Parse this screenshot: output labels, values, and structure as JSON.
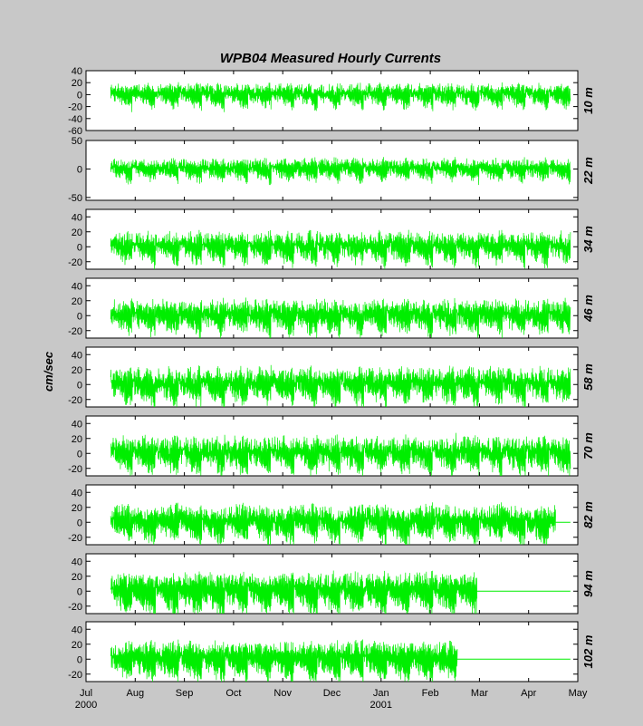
{
  "chart_data": {
    "type": "line",
    "title": "WPB04  Measured Hourly Currents",
    "ylabel": "cm/sec",
    "x_tick_labels": [
      "Jul",
      "Aug",
      "Sep",
      "Oct",
      "Nov",
      "Dec",
      "Jan",
      "Feb",
      "Mar",
      "Apr",
      "May"
    ],
    "x_year_labels": [
      {
        "month": "Jul",
        "text": "2000"
      },
      {
        "month": "Jan",
        "text": "2001"
      }
    ],
    "x_range_months": [
      0,
      10
    ],
    "series_color": "#00ee00",
    "background_color": "#c8c8c8",
    "grid": false,
    "panels": [
      {
        "depth_label": "10 m",
        "ylim": [
          -60,
          40
        ],
        "yticks": [
          40,
          20,
          0,
          -20,
          -40,
          -60
        ],
        "amplitude": 24,
        "data_end_month": 9.85,
        "flat_after": false
      },
      {
        "depth_label": "22 m",
        "ylim": [
          -55,
          50
        ],
        "yticks": [
          50,
          0,
          -50
        ],
        "amplitude": 24,
        "data_end_month": 9.85,
        "flat_after": false
      },
      {
        "depth_label": "34 m",
        "ylim": [
          -30,
          50
        ],
        "yticks": [
          40,
          20,
          0,
          -20
        ],
        "amplitude": 26,
        "data_end_month": 9.85,
        "flat_after": false
      },
      {
        "depth_label": "46 m",
        "ylim": [
          -30,
          50
        ],
        "yticks": [
          40,
          20,
          0,
          -20
        ],
        "amplitude": 28,
        "data_end_month": 9.85,
        "flat_after": false
      },
      {
        "depth_label": "58 m",
        "ylim": [
          -30,
          50
        ],
        "yticks": [
          40,
          20,
          0,
          -20
        ],
        "amplitude": 30,
        "data_end_month": 9.85,
        "flat_after": false
      },
      {
        "depth_label": "70 m",
        "ylim": [
          -30,
          50
        ],
        "yticks": [
          40,
          20,
          0,
          -20
        ],
        "amplitude": 30,
        "data_end_month": 9.85,
        "flat_after": false
      },
      {
        "depth_label": "82 m",
        "ylim": [
          -30,
          50
        ],
        "yticks": [
          40,
          20,
          0,
          -20
        ],
        "amplitude": 30,
        "data_end_month": 9.55,
        "flat_after": true
      },
      {
        "depth_label": "94 m",
        "ylim": [
          -30,
          50
        ],
        "yticks": [
          40,
          20,
          0,
          -20
        ],
        "amplitude": 32,
        "data_end_month": 7.95,
        "flat_after": true
      },
      {
        "depth_label": "102 m",
        "ylim": [
          -30,
          50
        ],
        "yticks": [
          40,
          20,
          0,
          -20
        ],
        "amplitude": 30,
        "data_end_month": 7.55,
        "flat_after": true
      }
    ]
  }
}
